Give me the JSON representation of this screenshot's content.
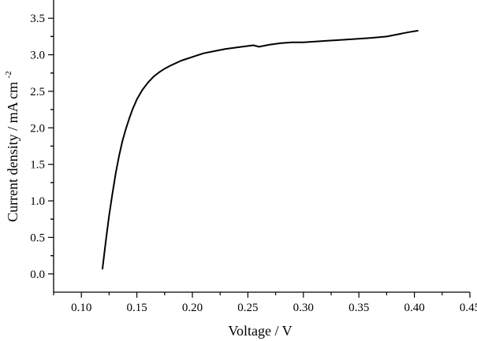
{
  "chart_data": {
    "type": "line",
    "title": "",
    "xlabel": "Voltage / V",
    "ylabel": "Current density / mA cm",
    "ylabel_superscript": "-2",
    "xlim": [
      0.075,
      0.45
    ],
    "ylim": [
      -0.25,
      3.75
    ],
    "xticks": [
      0.1,
      0.15,
      0.2,
      0.25,
      0.3,
      0.35,
      0.4,
      0.45
    ],
    "xtick_labels": [
      "0.10",
      "0.15",
      "0.20",
      "0.25",
      "0.30",
      "0.35",
      "0.40",
      "0.45"
    ],
    "yticks": [
      0.0,
      0.5,
      1.0,
      1.5,
      2.0,
      2.5,
      3.0,
      3.5
    ],
    "ytick_labels": [
      "0.0",
      "0.5",
      "1.0",
      "1.5",
      "2.0",
      "2.5",
      "3.0",
      "3.5"
    ],
    "grid": false,
    "legend": "none",
    "series": [
      {
        "color": "#000000",
        "x": [
          0.119,
          0.122,
          0.125,
          0.128,
          0.131,
          0.134,
          0.137,
          0.14,
          0.143,
          0.146,
          0.15,
          0.155,
          0.16,
          0.165,
          0.17,
          0.175,
          0.18,
          0.19,
          0.2,
          0.21,
          0.22,
          0.23,
          0.24,
          0.25,
          0.255,
          0.26,
          0.27,
          0.28,
          0.29,
          0.3,
          0.32,
          0.34,
          0.36,
          0.375,
          0.385,
          0.395,
          0.403
        ],
        "y": [
          0.07,
          0.45,
          0.8,
          1.1,
          1.38,
          1.62,
          1.82,
          1.98,
          2.12,
          2.25,
          2.39,
          2.52,
          2.62,
          2.7,
          2.76,
          2.81,
          2.85,
          2.92,
          2.97,
          3.02,
          3.05,
          3.08,
          3.1,
          3.12,
          3.13,
          3.11,
          3.14,
          3.16,
          3.17,
          3.17,
          3.19,
          3.21,
          3.23,
          3.25,
          3.28,
          3.31,
          3.33
        ]
      }
    ]
  }
}
